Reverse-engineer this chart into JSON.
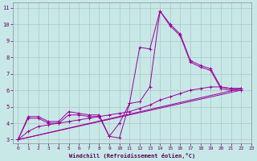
{
  "xlabel": "Windchill (Refroidissement éolien,°C)",
  "bg_color": "#c8e8e8",
  "line_color": "#990099",
  "xlim": [
    -0.5,
    23
  ],
  "ylim": [
    2.8,
    11.3
  ],
  "xticks": [
    0,
    1,
    2,
    3,
    4,
    5,
    6,
    7,
    8,
    9,
    10,
    11,
    12,
    13,
    14,
    15,
    16,
    17,
    18,
    19,
    20,
    21,
    22,
    23
  ],
  "yticks": [
    3,
    4,
    5,
    6,
    7,
    8,
    9,
    10,
    11
  ],
  "grid_color": "#b0c4c4",
  "line1_x": [
    0,
    1,
    2,
    3,
    4,
    5,
    6,
    7,
    8,
    9,
    10,
    11,
    12,
    13,
    14,
    15,
    16,
    17,
    18,
    19,
    20,
    21,
    22
  ],
  "line1_y": [
    3.0,
    4.4,
    4.4,
    4.1,
    4.1,
    4.7,
    4.6,
    4.5,
    4.5,
    3.2,
    3.1,
    5.2,
    8.6,
    8.5,
    10.8,
    10.0,
    9.4,
    7.8,
    7.5,
    7.3,
    6.2,
    6.1,
    6.1
  ],
  "line2_x": [
    0,
    1,
    2,
    3,
    4,
    5,
    6,
    7,
    8,
    9,
    10,
    11,
    12,
    13,
    14,
    15,
    16,
    17,
    18,
    19,
    20,
    21,
    22
  ],
  "line2_y": [
    3.0,
    4.3,
    4.3,
    4.0,
    4.0,
    4.5,
    4.5,
    4.4,
    4.4,
    3.2,
    4.0,
    5.2,
    5.3,
    6.2,
    10.8,
    9.9,
    9.3,
    7.7,
    7.4,
    7.2,
    6.1,
    6.0,
    6.0
  ],
  "line3_x": [
    0,
    22
  ],
  "line3_y": [
    3.0,
    6.1
  ],
  "line4_x": [
    0,
    22
  ],
  "line4_y": [
    3.0,
    6.0
  ],
  "line5_x": [
    0,
    1,
    2,
    3,
    4,
    5,
    6,
    7,
    8,
    9,
    10,
    11,
    12,
    13,
    14,
    15,
    16,
    17,
    18,
    19,
    20,
    21,
    22
  ],
  "line5_y": [
    3.0,
    3.5,
    3.8,
    3.9,
    4.0,
    4.1,
    4.2,
    4.3,
    4.4,
    4.5,
    4.6,
    4.7,
    4.9,
    5.1,
    5.4,
    5.6,
    5.8,
    6.0,
    6.1,
    6.2,
    6.2,
    6.1,
    6.1
  ]
}
